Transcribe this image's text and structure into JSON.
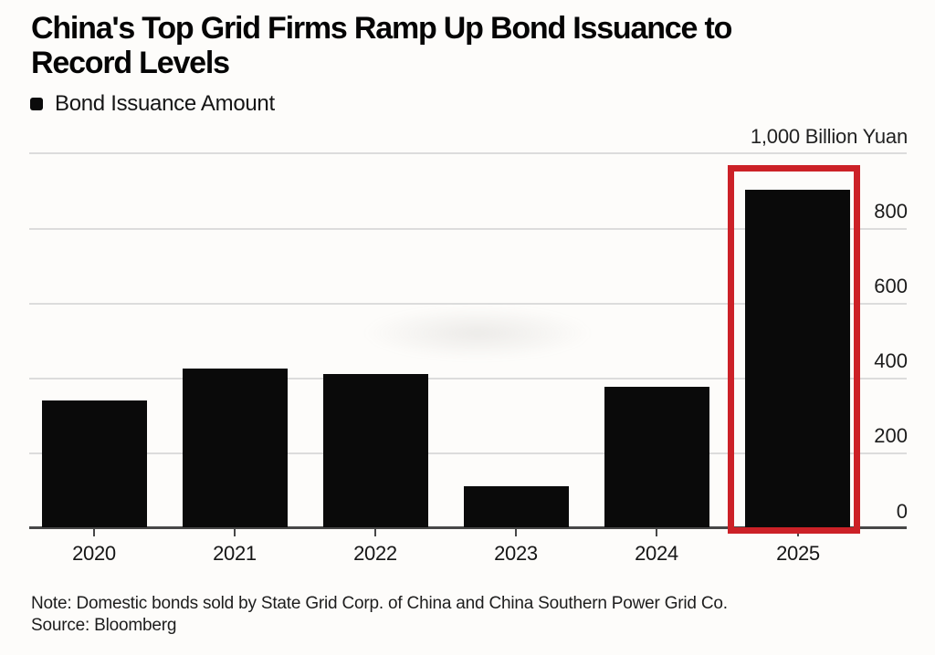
{
  "header": {
    "title": "China's Top Grid Firms Ramp Up Bond Issuance to Record Levels",
    "legend_label": "Bond Issuance Amount",
    "axis_unit_label": "1,000 Billion Yuan"
  },
  "chart_data": {
    "type": "bar",
    "title": "China's Top Grid Firms Ramp Up Bond Issuance to Record Levels",
    "series_name": "Bond Issuance Amount",
    "categories": [
      "2020",
      "2021",
      "2022",
      "2023",
      "2024",
      "2025"
    ],
    "values": [
      340,
      425,
      410,
      110,
      375,
      900
    ],
    "xlabel": "",
    "ylabel": "1,000 Billion Yuan",
    "ylim": [
      0,
      1000
    ],
    "yticks": [
      0,
      200,
      400,
      600,
      800
    ],
    "ytick_labels": [
      "0",
      "200",
      "400",
      "600",
      "800"
    ],
    "grid": true,
    "legend_position": "top-left",
    "bar_color": "#0a0a0a",
    "highlight": {
      "category": "2025",
      "style": "red-outline-box",
      "box_color": "#cc2127"
    }
  },
  "footer": {
    "note": "Note: Domestic bonds sold by State Grid Corp. of China and China Southern Power Grid Co.",
    "source": "Source: Bloomberg"
  }
}
